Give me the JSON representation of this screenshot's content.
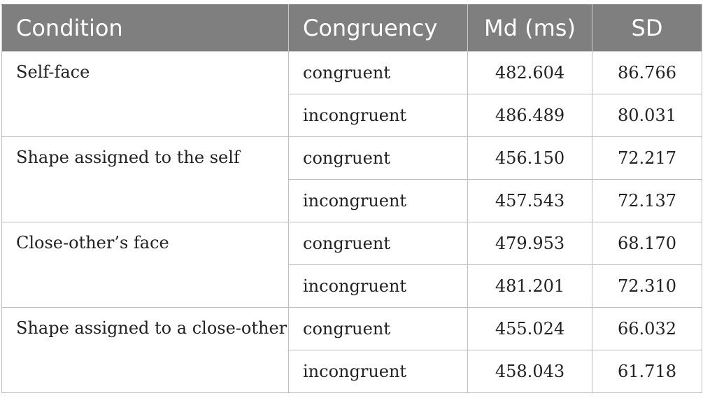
{
  "headers": {
    "condition": "Condition",
    "congruency": "Congruency",
    "md": "Md (ms)",
    "sd": "SD"
  },
  "groups": [
    {
      "condition": "Self-face",
      "rows": [
        {
          "congruency": "congruent",
          "md": "482.604",
          "sd": "86.766"
        },
        {
          "congruency": "incongruent",
          "md": "486.489",
          "sd": "80.031"
        }
      ]
    },
    {
      "condition": "Shape assigned to the self",
      "rows": [
        {
          "congruency": "congruent",
          "md": "456.150",
          "sd": "72.217"
        },
        {
          "congruency": "incongruent",
          "md": "457.543",
          "sd": "72.137"
        }
      ]
    },
    {
      "condition": "Close-other’s face",
      "rows": [
        {
          "congruency": "congruent",
          "md": "479.953",
          "sd": "68.170"
        },
        {
          "congruency": "incongruent",
          "md": "481.201",
          "sd": "72.310"
        }
      ]
    },
    {
      "condition": "Shape assigned to a close-other",
      "rows": [
        {
          "congruency": "congruent",
          "md": "455.024",
          "sd": "66.032"
        },
        {
          "congruency": "incongruent",
          "md": "458.043",
          "sd": "61.718"
        }
      ]
    }
  ]
}
